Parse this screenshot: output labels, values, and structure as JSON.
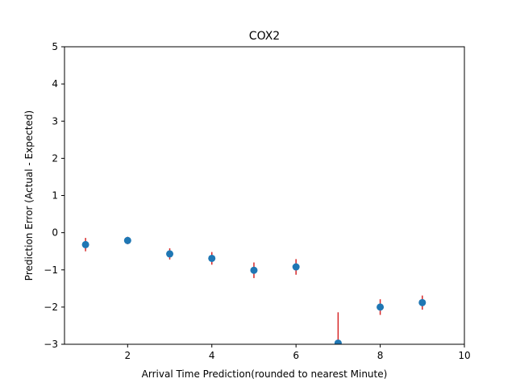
{
  "chart_data": {
    "type": "scatter",
    "title": "COX2",
    "xlabel": "Arrival Time Prediction(rounded to nearest Minute)",
    "ylabel": "Prediction Error (Actual - Expected)",
    "xlim": [
      0.5,
      10
    ],
    "ylim": [
      -3,
      5
    ],
    "xticks": [
      2,
      4,
      6,
      8,
      10
    ],
    "yticks": [
      -3,
      -2,
      -1,
      0,
      1,
      2,
      3,
      4,
      5
    ],
    "grid": false,
    "marker_color": "#1f77b4",
    "errorbar_color": "#d62728",
    "points": [
      {
        "x": 1,
        "y": -0.32,
        "err_low": 0.18,
        "err_high": 0.18
      },
      {
        "x": 2,
        "y": -0.21,
        "err_low": 0.1,
        "err_high": 0.1
      },
      {
        "x": 3,
        "y": -0.57,
        "err_low": 0.15,
        "err_high": 0.15
      },
      {
        "x": 4,
        "y": -0.69,
        "err_low": 0.17,
        "err_high": 0.17
      },
      {
        "x": 5,
        "y": -1.01,
        "err_low": 0.21,
        "err_high": 0.21
      },
      {
        "x": 6,
        "y": -0.92,
        "err_low": 0.21,
        "err_high": 0.21
      },
      {
        "x": 7,
        "y": -2.97,
        "err_low": 0.83,
        "err_high": 0.83
      },
      {
        "x": 8,
        "y": -2.0,
        "err_low": 0.21,
        "err_high": 0.21
      },
      {
        "x": 9,
        "y": -1.88,
        "err_low": 0.19,
        "err_high": 0.19
      }
    ]
  }
}
